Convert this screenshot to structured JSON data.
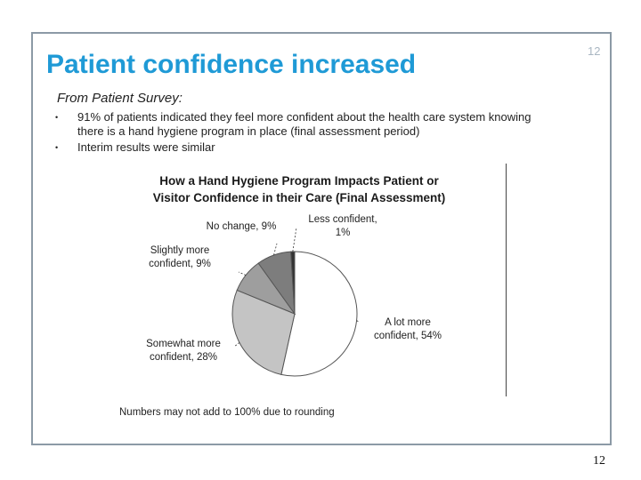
{
  "slide": {
    "title": "Patient confidence increased",
    "slide_number_top": "12",
    "slide_number_bottom": "12",
    "subtitle": "From Patient Survey:",
    "bullets": [
      {
        "lines": [
          "91% of patients indicated they feel more confident about the health care system knowing",
          "there is a hand hygiene program in place (final assessment period)"
        ]
      },
      {
        "lines": [
          "Interim results were similar"
        ]
      }
    ],
    "footnote": "Numbers may  not add to 100% due to rounding"
  },
  "chart_data": {
    "type": "pie",
    "title": [
      "How a Hand Hygiene Program Impacts Patient or",
      "Visitor Confidence in their Care (Final Assessment)"
    ],
    "slices": [
      {
        "label": "A lot more confident",
        "value": 54,
        "color": "#ffffff",
        "label_lines": [
          "A lot more",
          "confident, 54%"
        ]
      },
      {
        "label": "Somewhat more confident",
        "value": 28,
        "color": "#c4c4c4",
        "label_lines": [
          "Somewhat more",
          "confident, 28%"
        ]
      },
      {
        "label": "Slightly more confident",
        "value": 9,
        "color": "#9e9e9e",
        "label_lines": [
          "Slightly more",
          "confident, 9%"
        ]
      },
      {
        "label": "No change",
        "value": 9,
        "color": "#7d7d7d",
        "label_lines": [
          "No change, 9%"
        ]
      },
      {
        "label": "Less confident",
        "value": 1,
        "color": "#333333",
        "label_lines": [
          "Less confident,",
          "1%"
        ]
      }
    ]
  }
}
